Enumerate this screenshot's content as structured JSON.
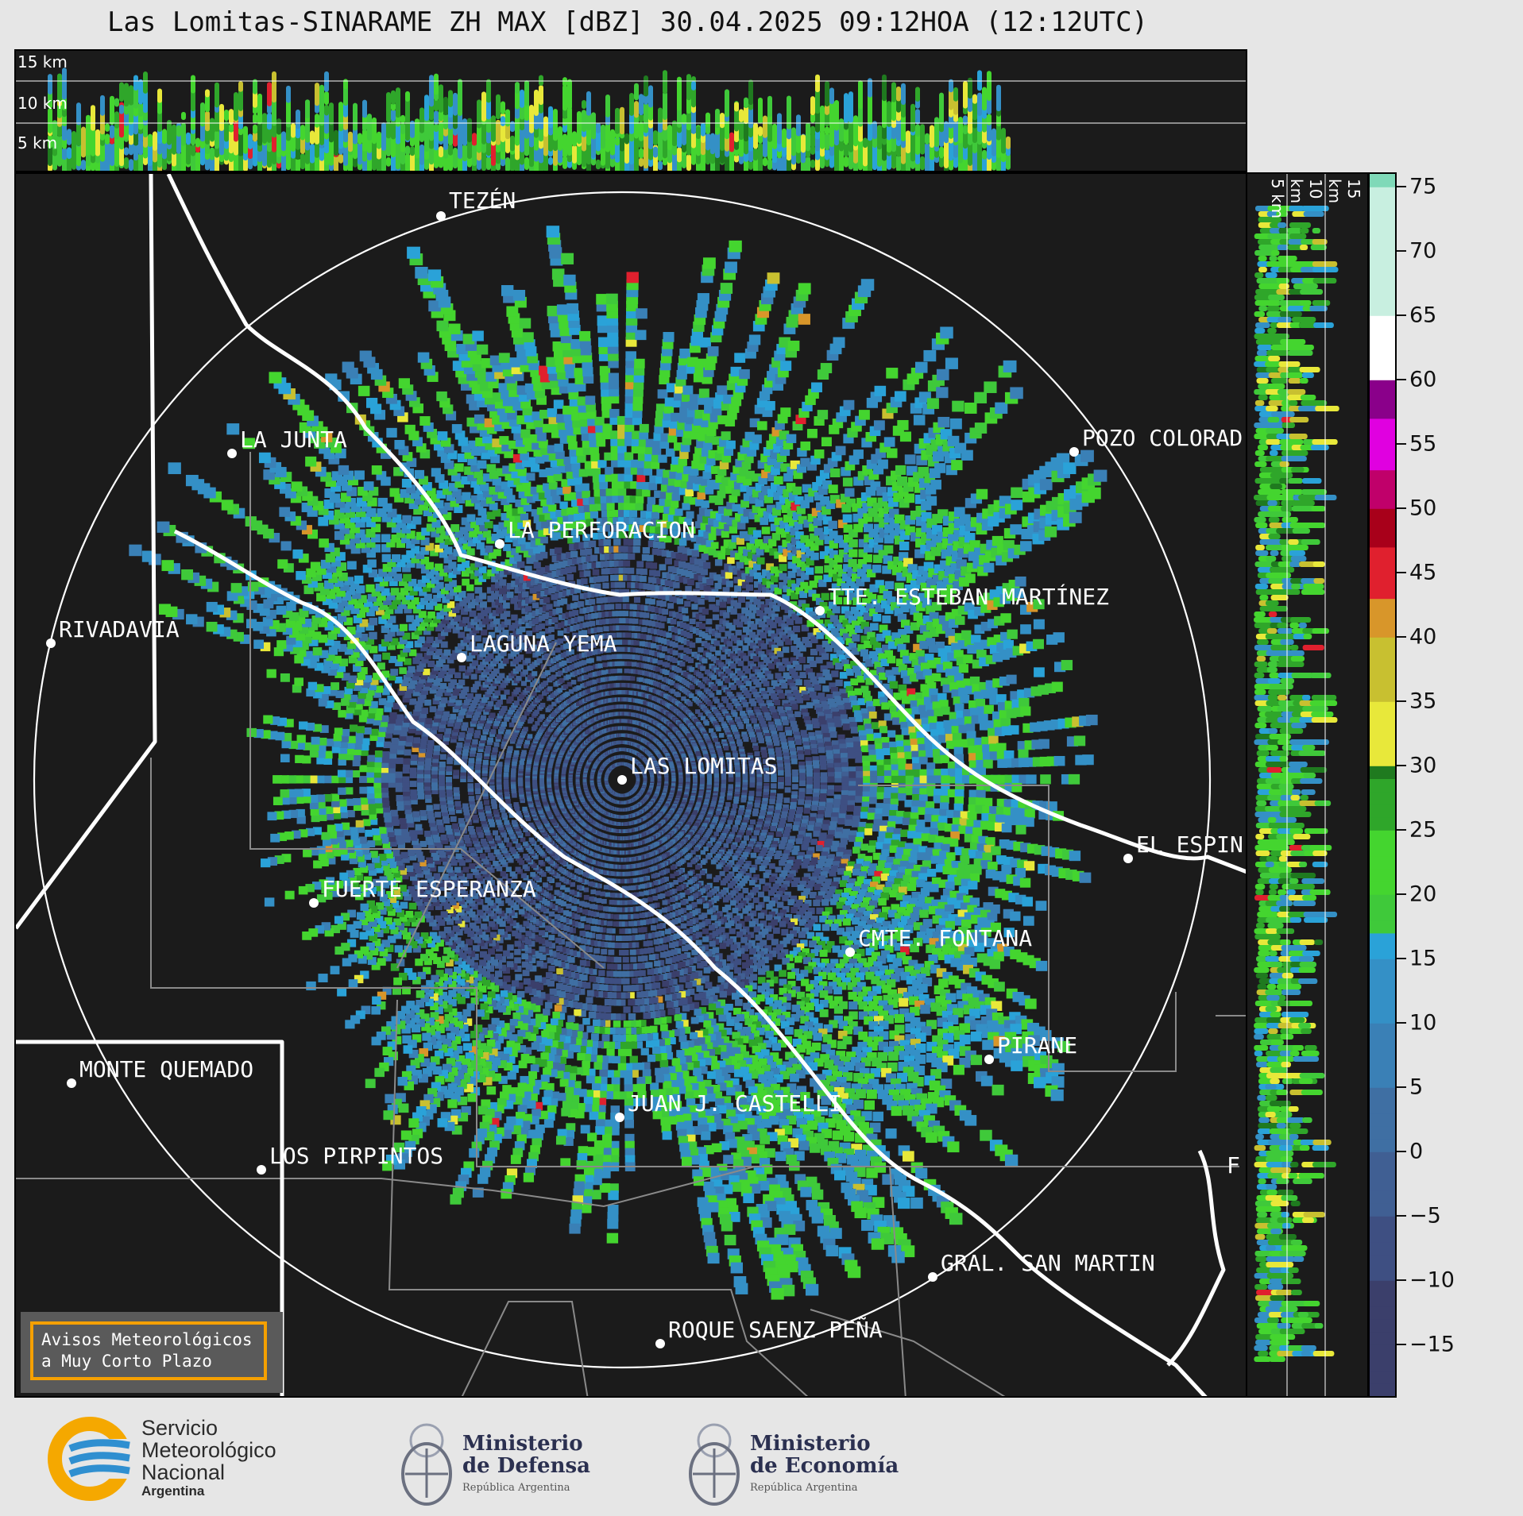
{
  "title": "Las Lomitas-SINARAME ZH MAX [dBZ] 30.04.2025 09:12HOA (12:12UTC)",
  "top_strip": {
    "km_labels": [
      "15 km",
      "10 km",
      "5 km"
    ]
  },
  "right_strip": {
    "km_labels": [
      "5 km",
      "10 km",
      "15 km"
    ]
  },
  "colorbar": {
    "ticks": [
      "75",
      "70",
      "65",
      "60",
      "55",
      "50",
      "45",
      "40",
      "35",
      "30",
      "25",
      "20",
      "15",
      "10",
      "5",
      "0",
      "−5",
      "−10",
      "−15"
    ],
    "range": [
      -19,
      76
    ],
    "unit": "dBZ"
  },
  "cities": [
    {
      "name": "TEZÉN"
    },
    {
      "name": "LA JUNTA"
    },
    {
      "name": "POZO COLORAD"
    },
    {
      "name": "LA PERFORACION"
    },
    {
      "name": "TTE. ESTEBAN MARTÍNEZ"
    },
    {
      "name": "RIVADAVIA"
    },
    {
      "name": "LAGUNA YEMA"
    },
    {
      "name": "LAS LOMITAS"
    },
    {
      "name": "EL ESPIN"
    },
    {
      "name": "FUERTE ESPERANZA"
    },
    {
      "name": "CMTE. FONTANA"
    },
    {
      "name": "PIRANE"
    },
    {
      "name": "MONTE QUEMADO"
    },
    {
      "name": "JUAN J. CASTELLI"
    },
    {
      "name": "LOS PIRPINTOS"
    },
    {
      "name": "GRAL. SAN MARTIN"
    },
    {
      "name": "ROQUE SAENZ PEÑA"
    }
  ],
  "edge_label": "F",
  "avisos": {
    "line1": "Avisos Meteorológicos",
    "line2": "a Muy Corto Plazo"
  },
  "logos": {
    "smn": {
      "line1": "Servicio",
      "line2": "Meteorológico",
      "line3": "Nacional",
      "line4": "Argentina"
    },
    "defensa": {
      "line1": "Ministerio",
      "line2": "de Defensa",
      "line3": "República Argentina"
    },
    "economia": {
      "line1": "Ministerio",
      "line2": "de Economía",
      "line3": "República Argentina"
    }
  }
}
